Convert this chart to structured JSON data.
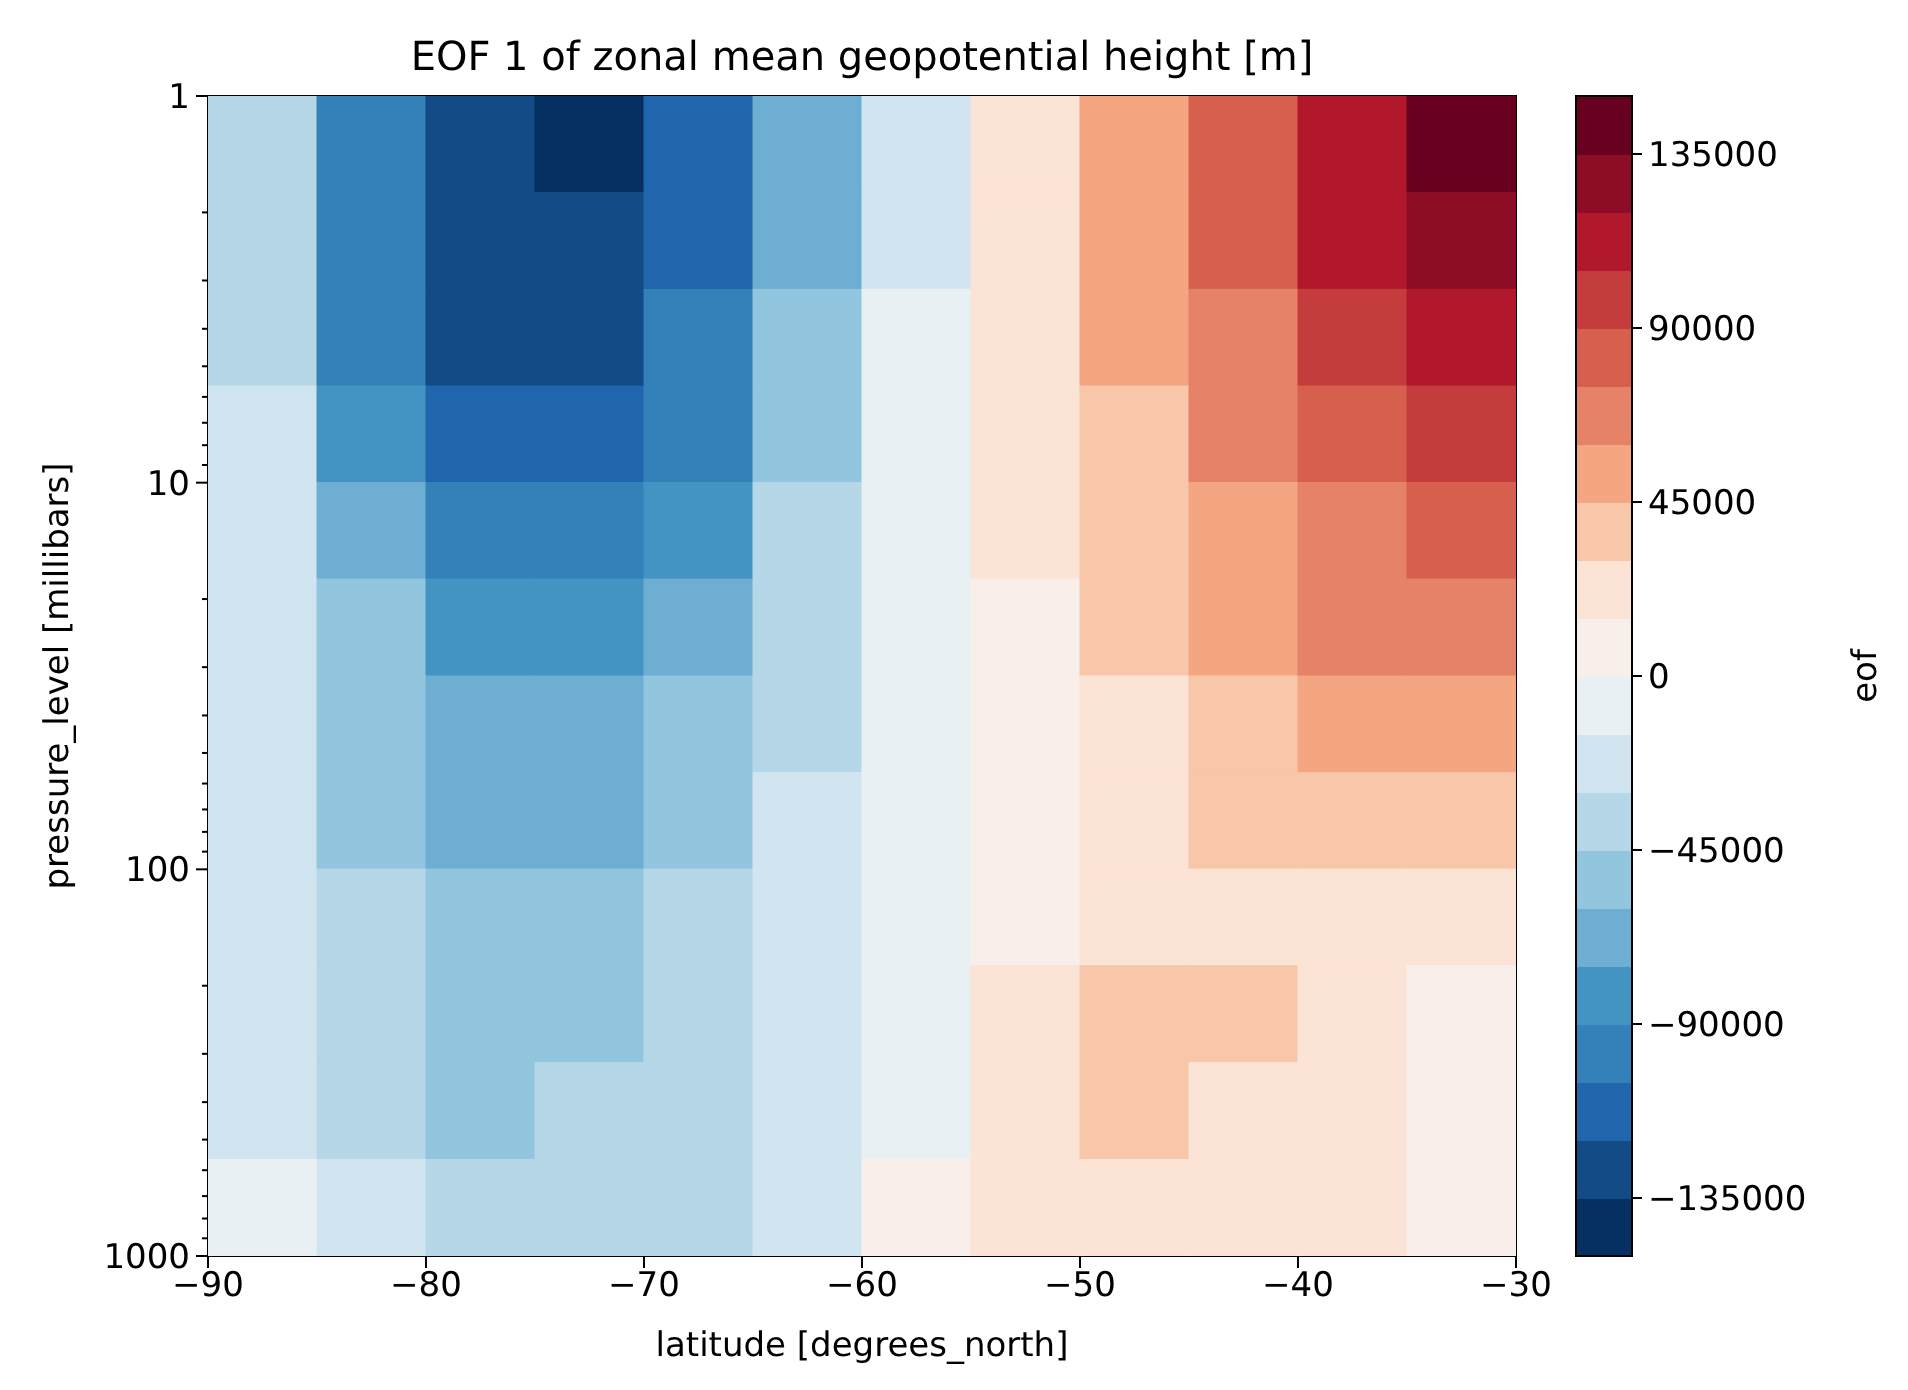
{
  "chart_data": {
    "type": "heatmap",
    "title": "EOF 1 of zonal mean geopotential height [m]",
    "xlabel": "latitude [degrees_north]",
    "ylabel": "pressure_level [millibars]",
    "clabel": "eof",
    "x": [
      -87.5,
      -82.5,
      -77.5,
      -72.5,
      -67.5,
      -62.5,
      -57.5,
      -52.5,
      -47.5,
      -42.5,
      -37.5,
      -32.5
    ],
    "y": [
      1.33,
      2.37,
      4.22,
      7.5,
      13.3,
      23.7,
      42.2,
      75,
      133,
      237,
      422,
      750
    ],
    "cells": [
      [
        -40000,
        -104000,
        -134000,
        -138000,
        -116000,
        -66000,
        -16000,
        22000,
        52000,
        82000,
        110000,
        137000
      ],
      [
        -38000,
        -100000,
        -132000,
        -134000,
        -110000,
        -62000,
        -16000,
        21000,
        50000,
        78000,
        106000,
        125000
      ],
      [
        -35000,
        -92000,
        -122000,
        -125000,
        -102000,
        -57000,
        -13000,
        19000,
        46000,
        70000,
        96000,
        112000
      ],
      [
        -29000,
        -82000,
        -110000,
        -113000,
        -92000,
        -50000,
        -12000,
        17000,
        40000,
        62000,
        86000,
        98000
      ],
      [
        -27000,
        -70000,
        -95000,
        -98000,
        -80000,
        -43000,
        -10000,
        16000,
        35000,
        53000,
        72000,
        82000
      ],
      [
        -24000,
        -59000,
        -83000,
        -86000,
        -70000,
        -38000,
        -9000,
        13000,
        31000,
        46000,
        62000,
        68000
      ],
      [
        -21000,
        -52000,
        -72000,
        -74000,
        -59000,
        -33000,
        -8000,
        11000,
        25000,
        37000,
        48000,
        52000
      ],
      [
        -19000,
        -46000,
        -63000,
        -64000,
        -52000,
        -28000,
        -7000,
        10000,
        22000,
        31000,
        37000,
        39000
      ],
      [
        -17000,
        -42000,
        -56000,
        -56000,
        -44000,
        -24000,
        -5000,
        13000,
        24000,
        25000,
        25000,
        22000
      ],
      [
        -16000,
        -40000,
        -53000,
        -52000,
        -42000,
        -22000,
        -3000,
        20000,
        34000,
        31000,
        20000,
        14000
      ],
      [
        -16000,
        -35000,
        -46000,
        -44000,
        -37000,
        -19000,
        -1000,
        22000,
        33000,
        28000,
        18000,
        11000
      ],
      [
        -14000,
        -29000,
        -38000,
        -36000,
        -31000,
        -16000,
        1000,
        19000,
        29000,
        25000,
        16000,
        10000
      ]
    ],
    "colors": [
      "#053061",
      "#134b87",
      "#2166ac",
      "#3480b9",
      "#4393c3",
      "#6eaed2",
      "#92c5de",
      "#b5d7e8",
      "#d1e5f0",
      "#e9f0f4",
      "#f8efeb",
      "#fbe3d5",
      "#f8c6a9",
      "#f4a582",
      "#e58267",
      "#d6604d",
      "#c43c3c",
      "#b2182b",
      "#8c0d25",
      "#67001f"
    ],
    "clim": [
      -150000,
      150000
    ],
    "cticks": [
      -135000,
      -90000,
      -45000,
      0,
      45000,
      90000,
      135000
    ],
    "xlim": [
      -90,
      -30
    ],
    "xticks": [
      -90,
      -80,
      -70,
      -60,
      -50,
      -40,
      -30
    ],
    "ylim": [
      1000,
      1
    ],
    "log": "y",
    "yticks": [
      1,
      {
        "value": 2,
        "label": null
      },
      {
        "value": 3,
        "label": null
      },
      {
        "value": 4,
        "label": null
      },
      {
        "value": 5,
        "label": null
      },
      {
        "value": 6,
        "label": null
      },
      {
        "value": 7,
        "label": null
      },
      {
        "value": 8,
        "label": null
      },
      {
        "value": 9,
        "label": null
      },
      10,
      {
        "value": 20,
        "label": null
      },
      {
        "value": 30,
        "label": null
      },
      {
        "value": 40,
        "label": null
      },
      {
        "value": 50,
        "label": null
      },
      {
        "value": 60,
        "label": null
      },
      {
        "value": 70,
        "label": null
      },
      {
        "value": 80,
        "label": null
      },
      {
        "value": 90,
        "label": null
      },
      100,
      {
        "value": 200,
        "label": null
      },
      {
        "value": 300,
        "label": null
      },
      {
        "value": 400,
        "label": null
      },
      {
        "value": 500,
        "label": null
      },
      {
        "value": 600,
        "label": null
      },
      {
        "value": 700,
        "label": null
      },
      {
        "value": 800,
        "label": null
      },
      {
        "value": 900,
        "label": null
      },
      1000
    ]
  }
}
